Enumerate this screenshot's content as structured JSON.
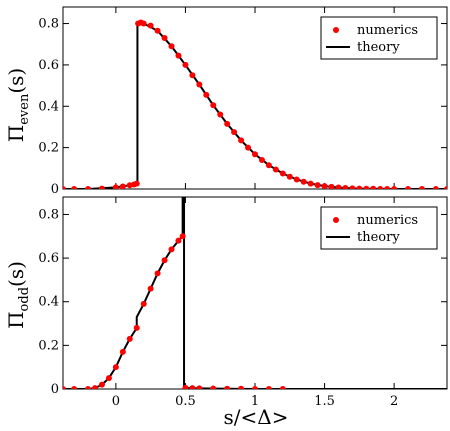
{
  "chart_data": [
    {
      "type": "scatter",
      "panel": "top",
      "ylabel_main": "Π",
      "ylabel_sub": "even",
      "ylabel_arg": "(s)",
      "xlim": [
        -0.38,
        2.38
      ],
      "ylim": [
        0,
        0.88
      ],
      "x_ticks": [
        0,
        0.5,
        1,
        1.5,
        2
      ],
      "y_ticks": [
        0,
        0.2,
        0.4,
        0.6,
        0.8
      ],
      "y_tick_labels": [
        "0",
        "0.2",
        "0.4",
        "0.6",
        "0.8"
      ],
      "grid": false,
      "legend_placement": "top-right",
      "series": [
        {
          "name": "numerics",
          "color": "#ff0000",
          "marker": "circle",
          "x": [
            -0.38,
            -0.3,
            -0.2,
            -0.1,
            0.0,
            0.05,
            0.1,
            0.13,
            0.15,
            0.16,
            0.18,
            0.2,
            0.25,
            0.3,
            0.35,
            0.4,
            0.45,
            0.5,
            0.55,
            0.6,
            0.65,
            0.7,
            0.75,
            0.8,
            0.85,
            0.9,
            0.95,
            1.0,
            1.05,
            1.1,
            1.15,
            1.2,
            1.25,
            1.3,
            1.35,
            1.4,
            1.45,
            1.5,
            1.55,
            1.6,
            1.65,
            1.7,
            1.75,
            1.8,
            1.85,
            1.9,
            1.95,
            2.0,
            2.1,
            2.2,
            2.3,
            2.38
          ],
          "y": [
            0.0,
            0.0,
            0.0,
            0.002,
            0.008,
            0.012,
            0.018,
            0.022,
            0.026,
            0.8,
            0.805,
            0.8,
            0.79,
            0.765,
            0.73,
            0.69,
            0.645,
            0.6,
            0.55,
            0.505,
            0.455,
            0.405,
            0.36,
            0.315,
            0.275,
            0.235,
            0.2,
            0.168,
            0.14,
            0.115,
            0.094,
            0.075,
            0.059,
            0.046,
            0.035,
            0.026,
            0.019,
            0.014,
            0.01,
            0.007,
            0.005,
            0.003,
            0.002,
            0.001,
            0.001,
            0.0,
            0.0,
            0.0,
            0.0,
            0.0,
            0.0,
            0.0
          ]
        },
        {
          "name": "theory",
          "color": "#000000",
          "marker": "line",
          "x": [
            -0.38,
            -0.2,
            0.0,
            0.1,
            0.155,
            0.155,
            0.2,
            0.3,
            0.4,
            0.5,
            0.6,
            0.7,
            0.8,
            0.9,
            1.0,
            1.1,
            1.2,
            1.3,
            1.4,
            1.5,
            1.6,
            1.7,
            1.8,
            2.0,
            2.38
          ],
          "y": [
            0.0,
            0.0,
            0.008,
            0.018,
            0.026,
            0.805,
            0.8,
            0.765,
            0.69,
            0.6,
            0.505,
            0.405,
            0.315,
            0.235,
            0.168,
            0.115,
            0.075,
            0.046,
            0.026,
            0.014,
            0.007,
            0.003,
            0.001,
            0.0,
            0.0
          ]
        }
      ]
    },
    {
      "type": "scatter",
      "panel": "bottom",
      "ylabel_main": "Π",
      "ylabel_sub": "odd",
      "ylabel_arg": "(s)",
      "xlabel": "s/<Δ>",
      "xlim": [
        -0.38,
        2.38
      ],
      "ylim": [
        0,
        0.88
      ],
      "x_ticks": [
        0,
        0.5,
        1,
        1.5,
        2
      ],
      "x_tick_labels": [
        "0",
        "0.5",
        "1",
        "1.5",
        "2"
      ],
      "y_ticks": [
        0,
        0.2,
        0.4,
        0.6,
        0.8
      ],
      "y_tick_labels": [
        "0",
        "0.2",
        "0.4",
        "0.6",
        "0.8"
      ],
      "grid": false,
      "legend_placement": "top-right",
      "series": [
        {
          "name": "numerics",
          "color": "#ff0000",
          "marker": "circle",
          "x": [
            -0.38,
            -0.3,
            -0.2,
            -0.15,
            -0.1,
            -0.05,
            0.0,
            0.05,
            0.1,
            0.15,
            0.2,
            0.25,
            0.3,
            0.35,
            0.4,
            0.45,
            0.48,
            0.5,
            0.55,
            0.6,
            0.7,
            0.8,
            0.9,
            1.0,
            1.1,
            1.2
          ],
          "y": [
            0.0,
            0.0,
            0.0,
            0.004,
            0.02,
            0.05,
            0.1,
            0.17,
            0.23,
            0.28,
            0.39,
            0.46,
            0.53,
            0.59,
            0.64,
            0.68,
            0.7,
            0.005,
            0.004,
            0.003,
            0.002,
            0.001,
            0.001,
            0.0,
            0.0,
            0.0
          ]
        },
        {
          "name": "theory",
          "color": "#000000",
          "marker": "line",
          "x": [
            -0.38,
            -0.2,
            -0.15,
            -0.1,
            -0.05,
            0.0,
            0.05,
            0.1,
            0.15,
            0.15,
            0.2,
            0.25,
            0.3,
            0.35,
            0.4,
            0.45,
            0.48,
            0.48,
            0.49,
            0.49,
            0.6,
            0.8,
            1.0,
            1.2,
            1.6,
            2.0,
            2.38
          ],
          "y": [
            0.0,
            0.0,
            0.004,
            0.02,
            0.05,
            0.1,
            0.17,
            0.23,
            0.28,
            0.33,
            0.39,
            0.46,
            0.53,
            0.59,
            0.64,
            0.68,
            0.7,
            0.88,
            0.88,
            0.005,
            0.003,
            0.001,
            0.0,
            0.0,
            0.0,
            0.0,
            0.0
          ]
        }
      ]
    }
  ]
}
